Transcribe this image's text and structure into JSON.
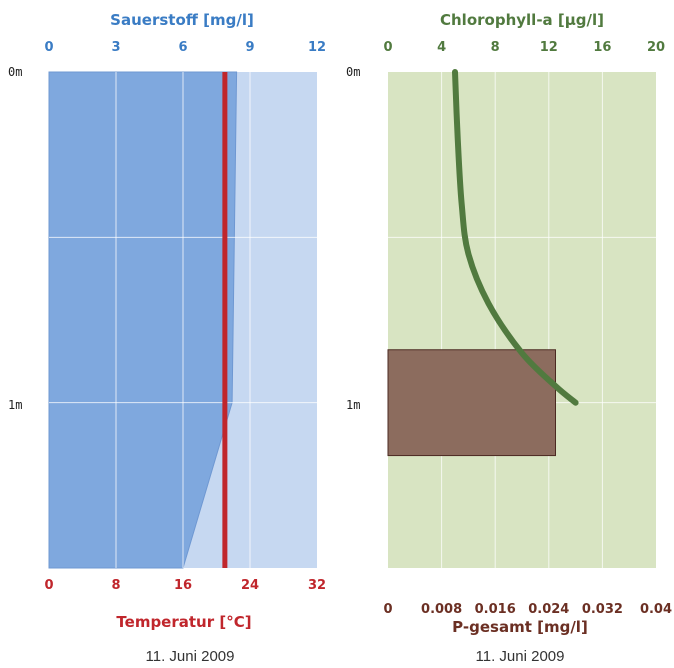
{
  "colors": {
    "oxygen_axis": "#3a7cc4",
    "oxygen_fill": "#7fa8de",
    "oxygen_bg": "#c6d8f1",
    "temperature": "#c0262c",
    "chlorophyll": "#517a3f",
    "chl_bg": "#d8e4c2",
    "phosphorus": "#6b2f23",
    "phosphorus_fill": "#8c6c5e"
  },
  "chart_data": [
    {
      "type": "area",
      "title": "",
      "y_labels": [
        "0m",
        "1m"
      ],
      "ylim": [
        0,
        1.5
      ],
      "top_axis": {
        "label": "Sauerstoff [mg/l]",
        "ticks": [
          "0",
          "3",
          "6",
          "9",
          "12"
        ],
        "range": [
          0,
          12
        ]
      },
      "bottom_axis": {
        "label": "Temperatur [°C]",
        "ticks": [
          "0",
          "8",
          "16",
          "24",
          "32"
        ],
        "range": [
          0,
          32
        ]
      },
      "series": [
        {
          "name": "Sauerstoff [mg/l]",
          "type": "area",
          "points": [
            [
              8.4,
              0
            ],
            [
              8.2,
              1.0
            ],
            [
              6.0,
              1.5
            ]
          ]
        },
        {
          "name": "Temperatur [°C]",
          "type": "line",
          "points": [
            [
              21,
              0
            ],
            [
              21,
              1.5
            ]
          ]
        }
      ],
      "caption": "11. Juni 2009"
    },
    {
      "type": "line",
      "title": "",
      "y_labels": [
        "0m",
        "1m"
      ],
      "ylim": [
        0,
        1.5
      ],
      "top_axis": {
        "label": "Chlorophyll-a [µg/l]",
        "ticks": [
          "0",
          "4",
          "8",
          "12",
          "16",
          "20"
        ],
        "range": [
          0,
          20
        ]
      },
      "bottom_axis": {
        "label": "P-gesamt [mg/l]",
        "ticks": [
          "0",
          "0.008",
          "0.016",
          "0.024",
          "0.032",
          "0.04"
        ],
        "range": [
          0,
          0.04
        ]
      },
      "series": [
        {
          "name": "Chlorophyll-a [µg/l]",
          "type": "line",
          "points": [
            [
              5.0,
              0.0
            ],
            [
              5.2,
              0.2
            ],
            [
              5.5,
              0.4
            ],
            [
              6.0,
              0.55
            ],
            [
              7.5,
              0.7
            ],
            [
              10.0,
              0.85
            ],
            [
              12.5,
              0.95
            ],
            [
              14.0,
              1.0
            ]
          ]
        },
        {
          "name": "P-gesamt [mg/l]",
          "type": "bar",
          "value": 0.025,
          "depth_range": [
            0.84,
            1.16
          ]
        }
      ],
      "caption": "11. Juni 2009"
    }
  ]
}
